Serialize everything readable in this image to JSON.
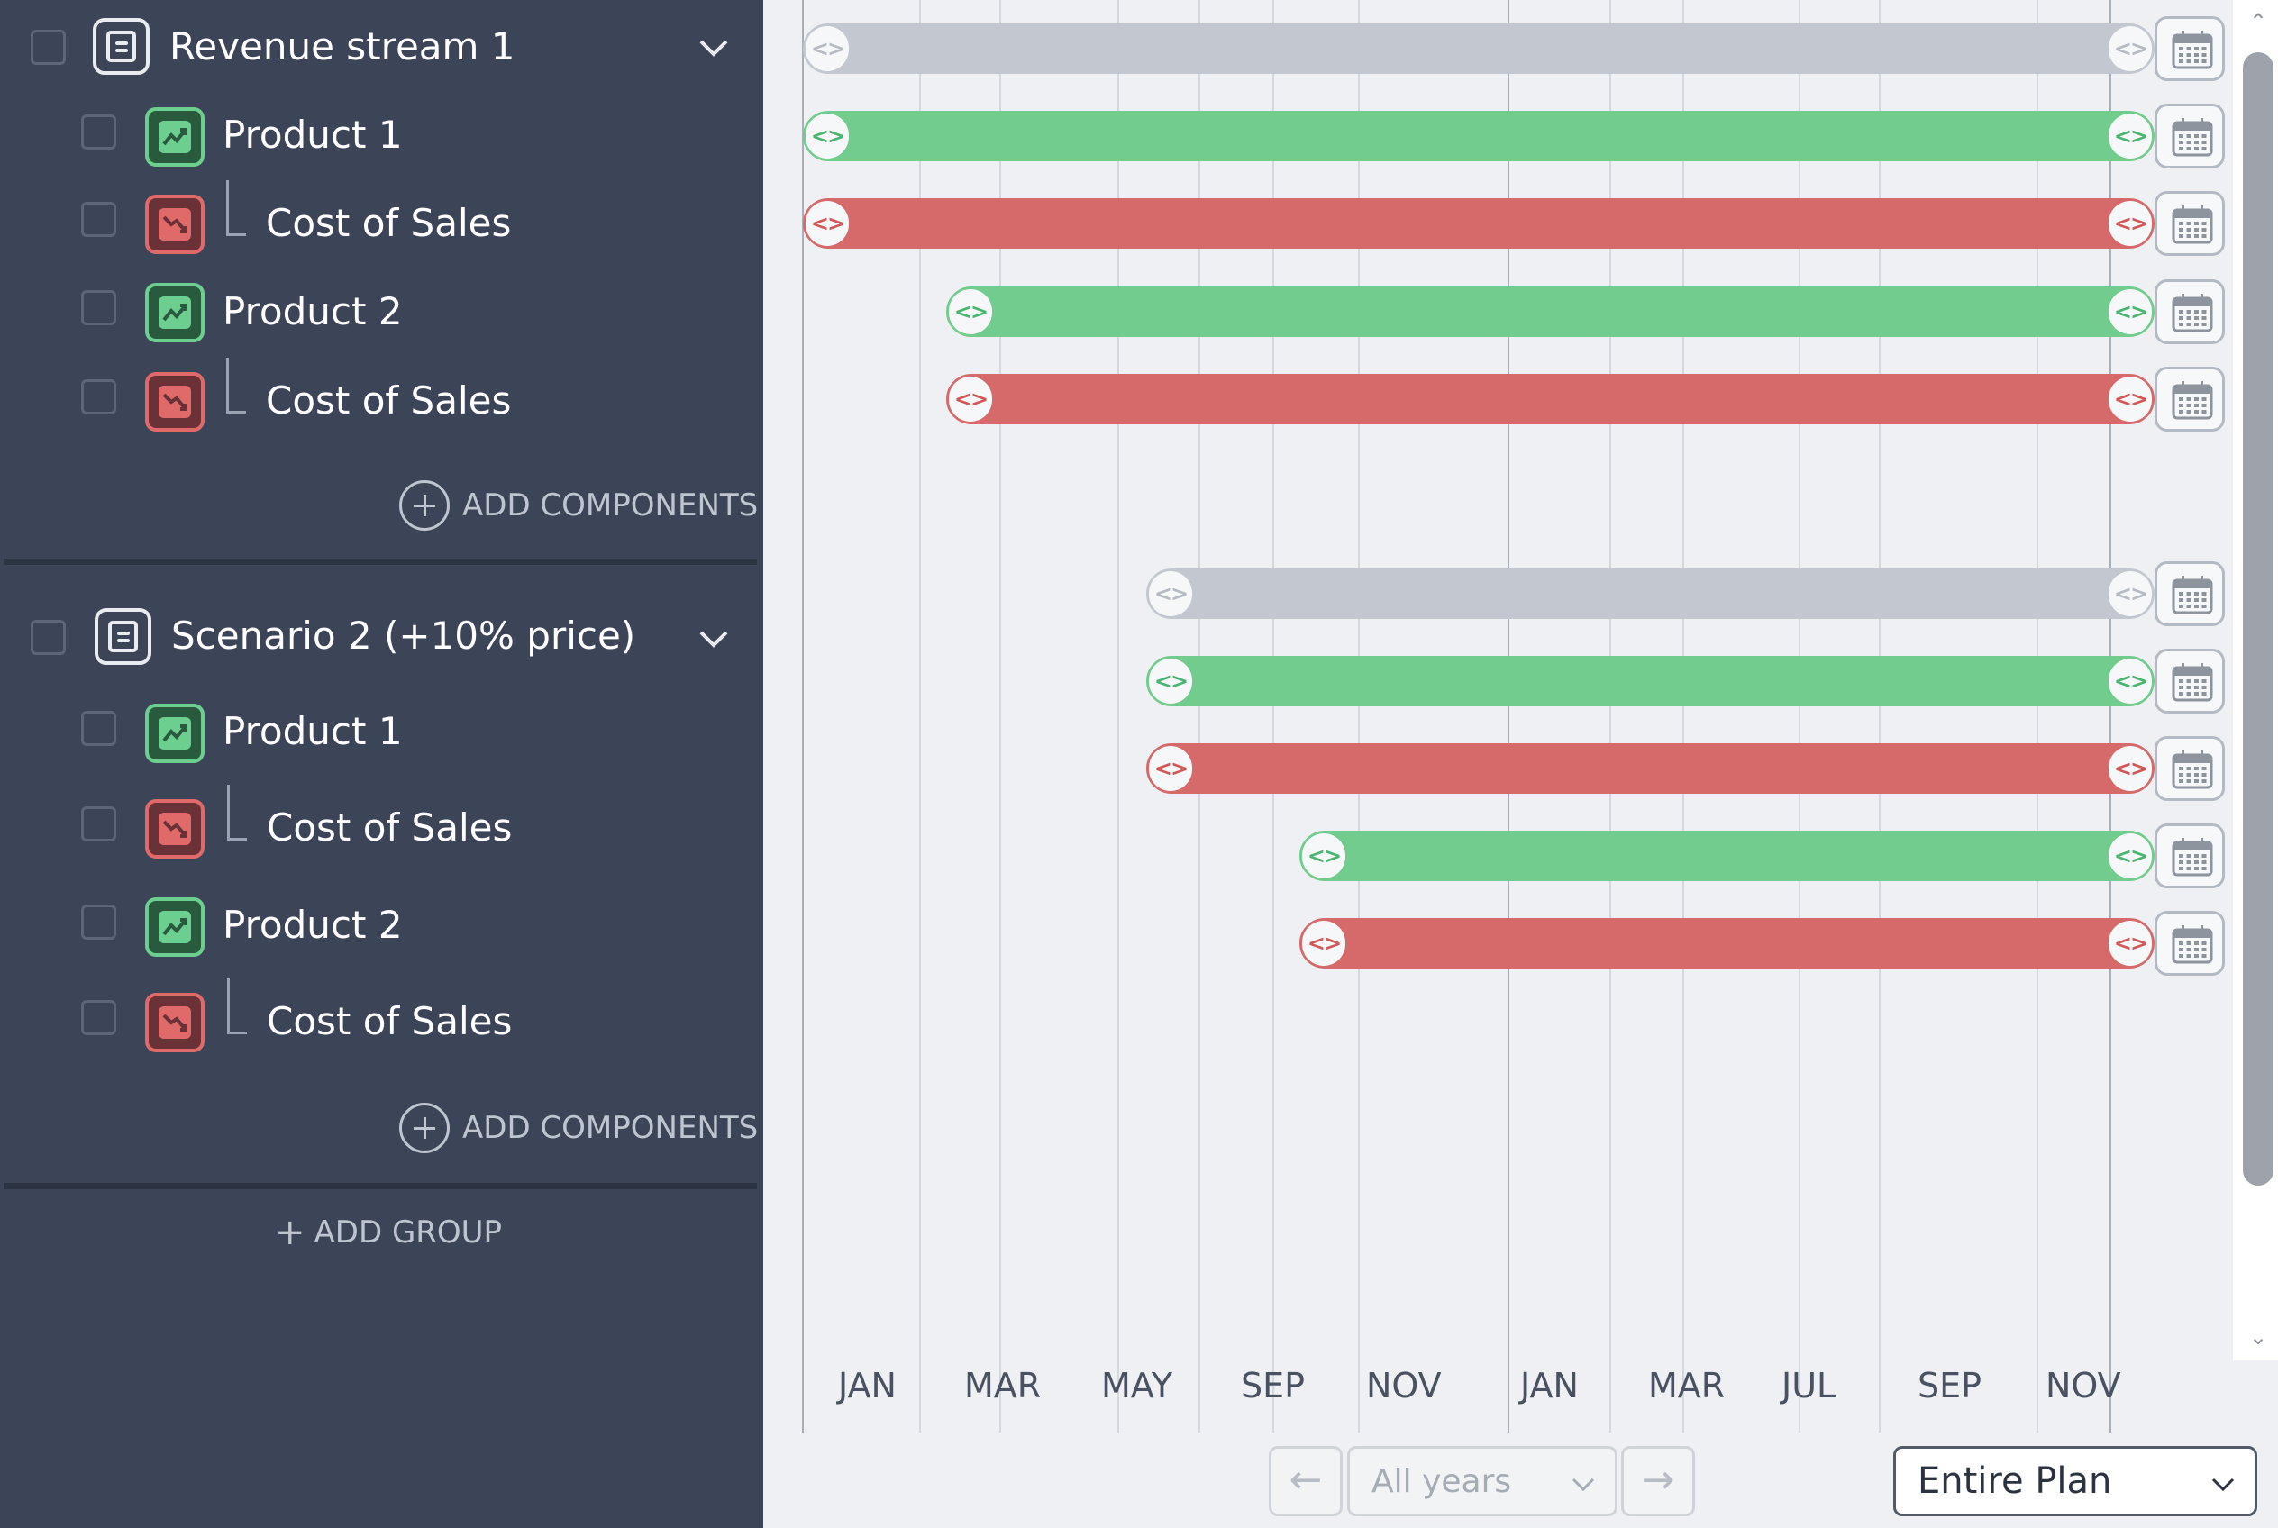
{
  "groups": [
    {
      "title": "Revenue stream 1",
      "items": [
        {
          "label": "Product 1",
          "kind": "revenue"
        },
        {
          "label": "Cost of Sales",
          "kind": "cost"
        },
        {
          "label": "Product 2",
          "kind": "revenue"
        },
        {
          "label": "Cost of Sales",
          "kind": "cost"
        }
      ],
      "add_components_label": "ADD COMPONENTS"
    },
    {
      "title": "Scenario 2 (+10% price)",
      "items": [
        {
          "label": "Product 1",
          "kind": "revenue"
        },
        {
          "label": "Cost of Sales",
          "kind": "cost"
        },
        {
          "label": "Product 2",
          "kind": "revenue"
        },
        {
          "label": "Cost of Sales",
          "kind": "cost"
        }
      ],
      "add_components_label": "ADD COMPONENTS"
    }
  ],
  "add_group_label": "ADD GROUP",
  "timeline": {
    "months": [
      "JAN",
      "MAR",
      "MAY",
      "SEP",
      "NOV",
      "JAN",
      "MAR",
      "JUL",
      "SEP",
      "NOV"
    ]
  },
  "controls": {
    "prev_arrow": "←",
    "next_arrow": "→",
    "year_select": "All years",
    "plan_select": "Entire Plan"
  },
  "colors": {
    "group": "#c2c7d0",
    "revenue": "#72cc8e",
    "cost": "#d66a6a",
    "sidebar": "#3c4558"
  },
  "icons": {
    "group": "document-icon",
    "revenue": "trend-up-icon",
    "cost": "trend-down-icon",
    "calendar": "calendar-icon"
  }
}
